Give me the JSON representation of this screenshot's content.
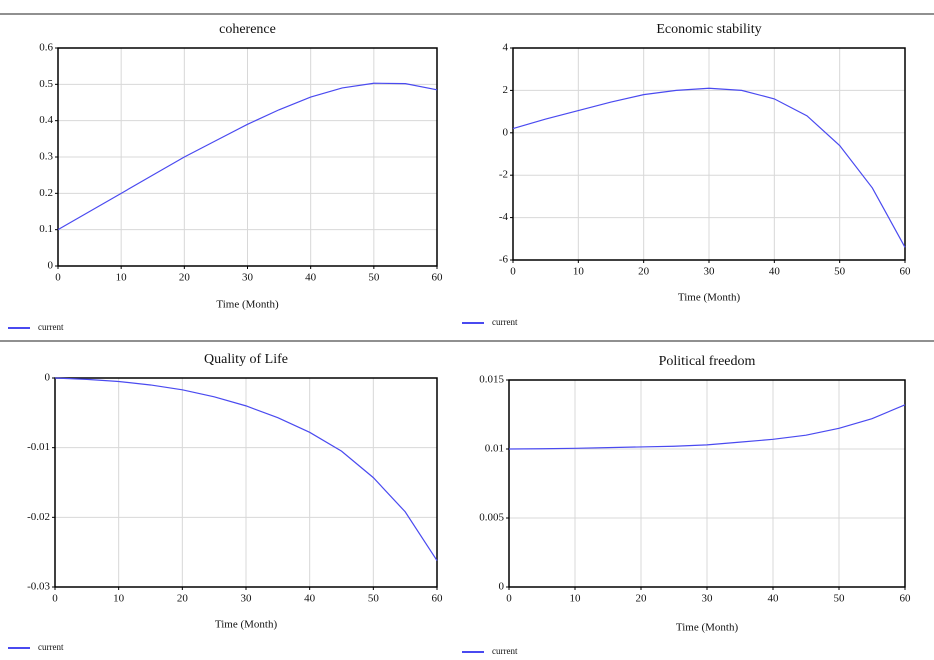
{
  "chart_data": [
    {
      "type": "line",
      "title": "coherence",
      "xlabel": "Time (Month)",
      "x": [
        0,
        5,
        10,
        15,
        20,
        25,
        30,
        35,
        40,
        45,
        50,
        55,
        60
      ],
      "series": [
        {
          "name": "current",
          "color": "#4a4af0",
          "values": [
            0.1,
            0.15,
            0.2,
            0.25,
            0.3,
            0.345,
            0.39,
            0.43,
            0.465,
            0.49,
            0.503,
            0.502,
            0.485
          ]
        }
      ],
      "xlim": [
        0,
        60
      ],
      "xticks": [
        0,
        10,
        20,
        30,
        40,
        50,
        60
      ],
      "ylim": [
        0,
        0.6
      ],
      "yticks": [
        0,
        0.1,
        0.2,
        0.3,
        0.4,
        0.5,
        0.6
      ],
      "grid": true
    },
    {
      "type": "line",
      "title": "Economic stability",
      "xlabel": "Time (Month)",
      "x": [
        0,
        5,
        10,
        15,
        20,
        25,
        30,
        35,
        40,
        45,
        50,
        55,
        60
      ],
      "series": [
        {
          "name": "current",
          "color": "#4a4af0",
          "values": [
            0.2,
            0.65,
            1.05,
            1.45,
            1.8,
            2.0,
            2.1,
            2.0,
            1.6,
            0.8,
            -0.6,
            -2.6,
            -5.4
          ]
        }
      ],
      "xlim": [
        0,
        60
      ],
      "xticks": [
        0,
        10,
        20,
        30,
        40,
        50,
        60
      ],
      "ylim": [
        -6,
        4
      ],
      "yticks": [
        -6,
        -4,
        -2,
        0,
        2,
        4
      ],
      "grid": true
    },
    {
      "type": "line",
      "title": "Quality of Life",
      "xlabel": "Time (Month)",
      "x": [
        0,
        5,
        10,
        15,
        20,
        25,
        30,
        35,
        40,
        45,
        50,
        55,
        60
      ],
      "series": [
        {
          "name": "current",
          "color": "#4a4af0",
          "values": [
            0,
            -0.0002,
            -0.0005,
            -0.001,
            -0.0017,
            -0.0027,
            -0.004,
            -0.0057,
            -0.0078,
            -0.0105,
            -0.0143,
            -0.0192,
            -0.0262
          ]
        }
      ],
      "xlim": [
        0,
        60
      ],
      "xticks": [
        0,
        10,
        20,
        30,
        40,
        50,
        60
      ],
      "ylim": [
        -0.03,
        0
      ],
      "yticks": [
        -0.03,
        -0.02,
        -0.01,
        0
      ],
      "grid": true
    },
    {
      "type": "line",
      "title": "Political freedom",
      "xlabel": "Time (Month)",
      "x": [
        0,
        5,
        10,
        15,
        20,
        25,
        30,
        35,
        40,
        45,
        50,
        55,
        60
      ],
      "series": [
        {
          "name": "current",
          "color": "#4a4af0",
          "values": [
            0.01,
            0.01002,
            0.01005,
            0.0101,
            0.01015,
            0.0102,
            0.0103,
            0.0105,
            0.0107,
            0.011,
            0.0115,
            0.0122,
            0.0132
          ]
        }
      ],
      "xlim": [
        0,
        60
      ],
      "xticks": [
        0,
        10,
        20,
        30,
        40,
        50,
        60
      ],
      "ylim": [
        0,
        0.015
      ],
      "yticks": [
        0,
        0.005,
        0.01,
        0.015
      ],
      "grid": true
    }
  ]
}
